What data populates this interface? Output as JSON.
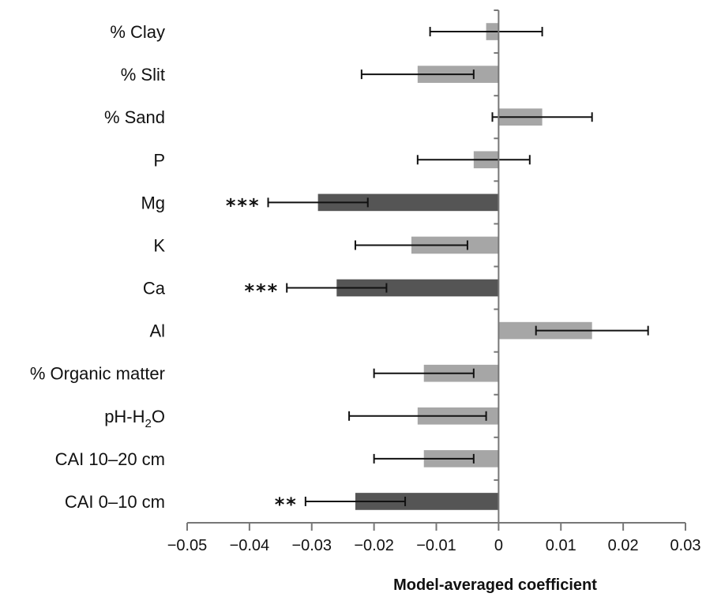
{
  "chart_data": {
    "type": "bar",
    "orientation": "horizontal",
    "xlabel": "Model-averaged coefficient",
    "xlim": [
      -0.05,
      0.03
    ],
    "xticks": [
      -0.05,
      -0.04,
      -0.03,
      -0.02,
      -0.01,
      0,
      0.01,
      0.02,
      0.03
    ],
    "xtick_labels": [
      "−0.05",
      "−0.04",
      "−0.03",
      "−0.02",
      "−0.01",
      "0",
      "0.01",
      "0.02",
      "0.03"
    ],
    "grid": false,
    "colors": {
      "significant": "#555555",
      "not_significant": "#a6a6a6",
      "error_bar": "#111111",
      "axis": "#777777"
    },
    "bars": [
      {
        "label": "% Clay",
        "value": -0.002,
        "ci_low": -0.011,
        "ci_high": 0.007,
        "significance": ""
      },
      {
        "label": "% Slit",
        "value": -0.013,
        "ci_low": -0.022,
        "ci_high": -0.004,
        "significance": ""
      },
      {
        "label": "% Sand",
        "value": 0.007,
        "ci_low": -0.001,
        "ci_high": 0.015,
        "significance": ""
      },
      {
        "label": "P",
        "value": -0.004,
        "ci_low": -0.013,
        "ci_high": 0.005,
        "significance": ""
      },
      {
        "label": "Mg",
        "value": -0.029,
        "ci_low": -0.037,
        "ci_high": -0.021,
        "significance": "***"
      },
      {
        "label": "K",
        "value": -0.014,
        "ci_low": -0.023,
        "ci_high": -0.005,
        "significance": ""
      },
      {
        "label": "Ca",
        "value": -0.026,
        "ci_low": -0.034,
        "ci_high": -0.018,
        "significance": "***"
      },
      {
        "label": "Al",
        "value": 0.015,
        "ci_low": 0.006,
        "ci_high": 0.024,
        "significance": ""
      },
      {
        "label": "% Organic matter",
        "value": -0.012,
        "ci_low": -0.02,
        "ci_high": -0.004,
        "significance": ""
      },
      {
        "label": "pH-H",
        "label_sub": "2",
        "label_post": "O",
        "value": -0.013,
        "ci_low": -0.024,
        "ci_high": -0.002,
        "significance": ""
      },
      {
        "label": "CAI 10–20 cm",
        "value": -0.012,
        "ci_low": -0.02,
        "ci_high": -0.004,
        "significance": ""
      },
      {
        "label": "CAI 0–10 cm",
        "value": -0.023,
        "ci_low": -0.031,
        "ci_high": -0.015,
        "significance": "**"
      }
    ]
  }
}
